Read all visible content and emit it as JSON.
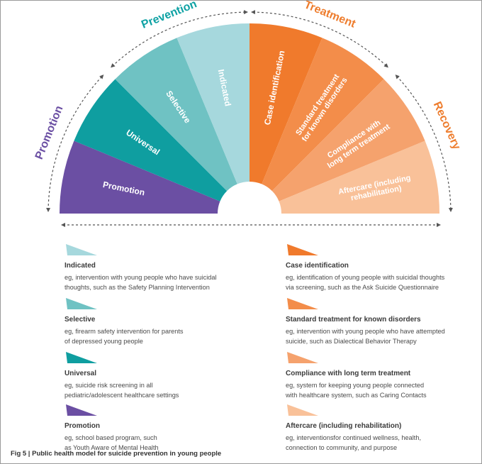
{
  "categories": {
    "promotion": {
      "label": "Promotion",
      "color": "#6b4fa3"
    },
    "prevention": {
      "label": "Prevention",
      "color": "#0fa2a4"
    },
    "treatment": {
      "label": "Treatment",
      "color": "#ee7d2e"
    },
    "recovery": {
      "label": "Recovery",
      "color": "#ee7d2e"
    }
  },
  "segments": [
    {
      "key": "promotion",
      "lines": [
        "Promotion"
      ],
      "color": "#6b4fa3"
    },
    {
      "key": "universal",
      "lines": [
        "Universal"
      ],
      "color": "#0f9ea0"
    },
    {
      "key": "selective",
      "lines": [
        "Selective"
      ],
      "color": "#6fc2c3"
    },
    {
      "key": "indicated",
      "lines": [
        "Indicated"
      ],
      "color": "#a6d8dd"
    },
    {
      "key": "case-identification",
      "lines": [
        "Case identification"
      ],
      "color": "#f07a2c"
    },
    {
      "key": "standard-treatment",
      "lines": [
        "Standard treatment",
        "for known disorders"
      ],
      "color": "#f38d4a"
    },
    {
      "key": "compliance",
      "lines": [
        "Compliance with",
        "long term treatment"
      ],
      "color": "#f5a26d"
    },
    {
      "key": "aftercare",
      "lines": [
        "Aftercare (including",
        "rehabilitation)"
      ],
      "color": "#f9c199"
    }
  ],
  "legend": [
    {
      "key": "indicated",
      "title": "Indicated",
      "desc": [
        "eg, intervention with young people who have suicidal",
        "thoughts, such as the Safety Planning Intervention"
      ],
      "color": "#a6d8dd"
    },
    {
      "key": "case-identification",
      "title": "Case identification",
      "desc": [
        "eg, identification of young people with suicidal thoughts",
        "via screening, such as the Ask Suicide Questionnaire"
      ],
      "color": "#f07a2c"
    },
    {
      "key": "selective",
      "title": "Selective",
      "desc": [
        "eg, firearm safety intervention for parents",
        "of depressed young people"
      ],
      "color": "#6fc2c3"
    },
    {
      "key": "standard-treatment",
      "title": "Standard treatment for known disorders",
      "desc": [
        "eg, intervention with young people who have attempted",
        "suicide, such as Dialectical Behavior Therapy"
      ],
      "color": "#f38d4a"
    },
    {
      "key": "universal",
      "title": "Universal",
      "desc": [
        "eg, suicide risk screening in all",
        "pediatric/adolescent healthcare settings"
      ],
      "color": "#0f9ea0"
    },
    {
      "key": "compliance",
      "title": "Compliance with long term treatment",
      "desc": [
        "eg, system for keeping young people connected",
        "with healthcare system, such as Caring Contacts"
      ],
      "color": "#f5a26d"
    },
    {
      "key": "promotion",
      "title": "Promotion",
      "desc": [
        "eg, school based program, such",
        "as Youth Aware of Mental Health"
      ],
      "color": "#6b4fa3"
    },
    {
      "key": "aftercare",
      "title": "Aftercare (including rehabilitation)",
      "desc": [
        "eg, interventionsfor continued wellness, health,",
        "connection to community, and purpose"
      ],
      "color": "#f9c199"
    }
  ],
  "caption": "Fig 5 | Public health model for suicide prevention in young people"
}
